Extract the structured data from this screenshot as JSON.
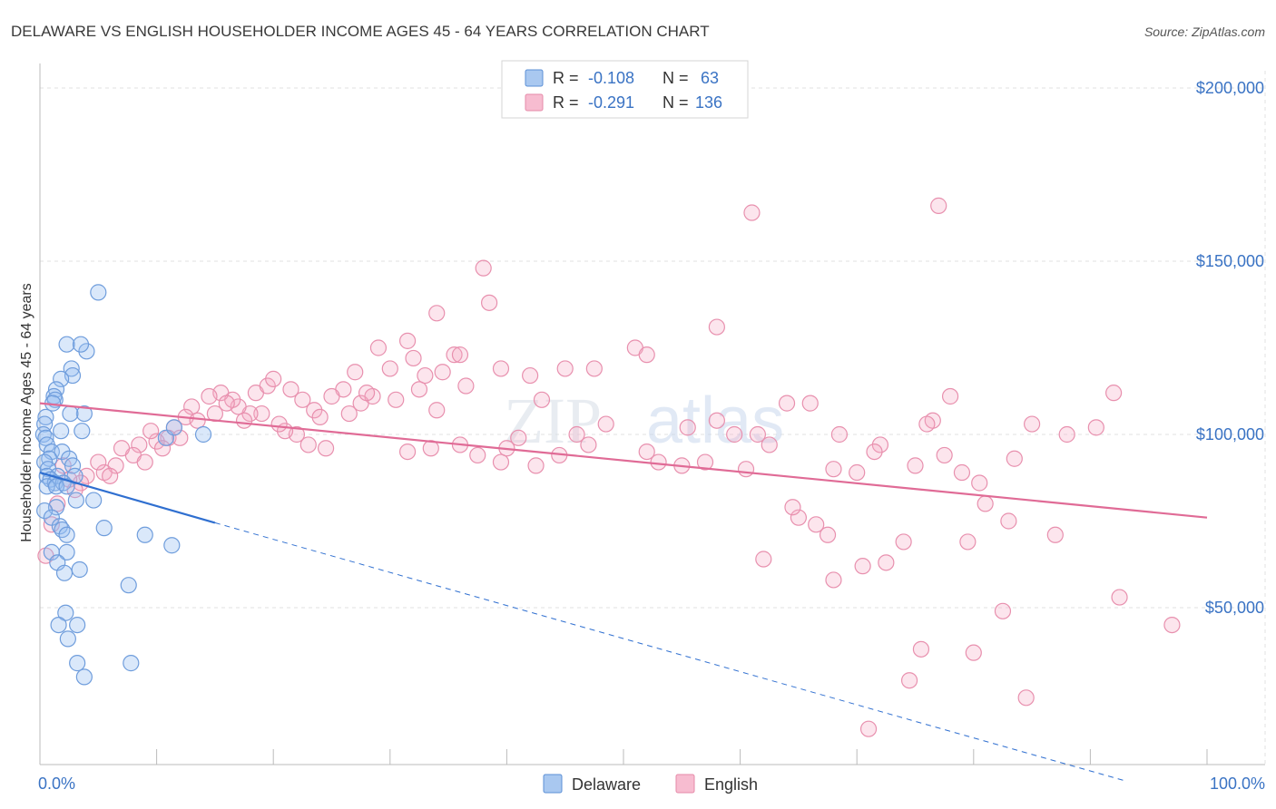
{
  "header": {
    "title": "DELAWARE VS ENGLISH HOUSEHOLDER INCOME AGES 45 - 64 YEARS CORRELATION CHART",
    "source": "Source: ZipAtlas.com"
  },
  "watermark": {
    "zip": "ZIP",
    "atlas": "atlas"
  },
  "legend": {
    "rows": [
      {
        "r_label": "R =",
        "r_value": "-0.108",
        "n_label": "N =",
        "n_value": "63",
        "color": "#a9c8f0",
        "stroke": "#5b8fd6"
      },
      {
        "r_label": "R =",
        "r_value": "-0.291",
        "n_label": "N =",
        "n_value": "136",
        "color": "#f7bcd0",
        "stroke": "#e68aa8"
      }
    ]
  },
  "bottom_legend": {
    "delaware": "Delaware",
    "english": "English"
  },
  "colors": {
    "delaware_fill": "rgba(150,190,240,0.35)",
    "delaware_stroke": "#6f9ddc",
    "delaware_line": "#2f6fd0",
    "english_fill": "rgba(245,170,195,0.30)",
    "english_stroke": "#e890ae",
    "english_line": "#e06b96",
    "grid": "#e2e2e2",
    "axis_text": "#3a73c4"
  },
  "chart_data": {
    "type": "scatter",
    "title": "DELAWARE VS ENGLISH HOUSEHOLDER INCOME AGES 45 - 64 YEARS CORRELATION CHART",
    "xlabel": "",
    "ylabel": "Householder Income Ages 45 - 64 years",
    "xlim": [
      0,
      100
    ],
    "ylim": [
      0,
      210000
    ],
    "x_tick_labels": [
      {
        "value": 0,
        "label": "0.0%"
      },
      {
        "value": 100,
        "label": "100.0%"
      }
    ],
    "y_ticks": [
      {
        "value": 50000,
        "label": "$50,000"
      },
      {
        "value": 100000,
        "label": "$100,000"
      },
      {
        "value": 150000,
        "label": "$150,000"
      },
      {
        "value": 200000,
        "label": "$200,000"
      }
    ],
    "x_minor_ticks": [
      0,
      10,
      20,
      30,
      40,
      50,
      60,
      70,
      80,
      90,
      100
    ],
    "series": [
      {
        "name": "Delaware",
        "r": -0.108,
        "n": 63,
        "trend": {
          "x1": 0,
          "y1": 89000,
          "x2": 15,
          "y2": 74500,
          "dash_to_x": 93,
          "dash_to_y": 0
        },
        "points": [
          [
            5.0,
            141000
          ],
          [
            4.0,
            124000
          ],
          [
            2.3,
            126000
          ],
          [
            3.5,
            126000
          ],
          [
            2.7,
            119000
          ],
          [
            2.8,
            117000
          ],
          [
            1.8,
            116000
          ],
          [
            1.4,
            113000
          ],
          [
            1.2,
            111000
          ],
          [
            1.3,
            110000
          ],
          [
            1.1,
            109000
          ],
          [
            3.8,
            106000
          ],
          [
            2.6,
            106000
          ],
          [
            0.5,
            105000
          ],
          [
            0.4,
            103000
          ],
          [
            1.8,
            101000
          ],
          [
            3.6,
            101000
          ],
          [
            0.3,
            100000
          ],
          [
            0.5,
            99000
          ],
          [
            0.6,
            97000
          ],
          [
            1.0,
            95000
          ],
          [
            1.9,
            95000
          ],
          [
            0.8,
            93000
          ],
          [
            2.5,
            93000
          ],
          [
            0.4,
            92000
          ],
          [
            2.8,
            91000
          ],
          [
            0.7,
            90000
          ],
          [
            0.6,
            88000
          ],
          [
            1.5,
            88000
          ],
          [
            3.0,
            88000
          ],
          [
            0.9,
            87000
          ],
          [
            1.3,
            86000
          ],
          [
            2.0,
            86000
          ],
          [
            0.6,
            85000
          ],
          [
            1.4,
            85000
          ],
          [
            2.3,
            85000
          ],
          [
            3.1,
            81000
          ],
          [
            4.6,
            81000
          ],
          [
            1.4,
            79000
          ],
          [
            0.4,
            78000
          ],
          [
            1.0,
            76000
          ],
          [
            5.5,
            73000
          ],
          [
            1.7,
            73500
          ],
          [
            1.9,
            72500
          ],
          [
            2.3,
            71000
          ],
          [
            9.0,
            71000
          ],
          [
            11.3,
            68000
          ],
          [
            1.0,
            66000
          ],
          [
            2.3,
            66000
          ],
          [
            1.5,
            63000
          ],
          [
            2.1,
            60000
          ],
          [
            3.4,
            61000
          ],
          [
            7.6,
            56500
          ],
          [
            2.2,
            48500
          ],
          [
            1.6,
            45000
          ],
          [
            3.2,
            45000
          ],
          [
            2.4,
            41000
          ],
          [
            3.2,
            34000
          ],
          [
            7.8,
            34000
          ],
          [
            3.8,
            30000
          ],
          [
            14.0,
            100000
          ],
          [
            10.8,
            99000
          ],
          [
            11.5,
            102000
          ]
        ]
      },
      {
        "name": "English",
        "r": -0.291,
        "n": 136,
        "trend": {
          "x1": 0,
          "y1": 109000,
          "x2": 100,
          "y2": 76000
        },
        "points": [
          [
            61.0,
            164000
          ],
          [
            77.0,
            166000
          ],
          [
            38.0,
            148000
          ],
          [
            38.5,
            138000
          ],
          [
            34.0,
            135000
          ],
          [
            58.0,
            131000
          ],
          [
            31.5,
            127000
          ],
          [
            51.0,
            125000
          ],
          [
            35.5,
            123000
          ],
          [
            36.0,
            123000
          ],
          [
            52.0,
            123000
          ],
          [
            29.0,
            125000
          ],
          [
            32.0,
            122000
          ],
          [
            30.0,
            119000
          ],
          [
            27.0,
            118000
          ],
          [
            39.5,
            119000
          ],
          [
            45.0,
            119000
          ],
          [
            47.5,
            119000
          ],
          [
            34.5,
            118000
          ],
          [
            33.0,
            117000
          ],
          [
            42.0,
            117000
          ],
          [
            36.5,
            114000
          ],
          [
            26.0,
            113000
          ],
          [
            25.0,
            111000
          ],
          [
            28.5,
            111000
          ],
          [
            43.0,
            110000
          ],
          [
            64.0,
            109000
          ],
          [
            66.0,
            109000
          ],
          [
            78.0,
            111000
          ],
          [
            76.5,
            104000
          ],
          [
            76.0,
            103000
          ],
          [
            48.5,
            103000
          ],
          [
            55.5,
            102000
          ],
          [
            46.0,
            100000
          ],
          [
            47.0,
            97000
          ],
          [
            58.0,
            104000
          ],
          [
            61.5,
            100000
          ],
          [
            59.5,
            100000
          ],
          [
            62.5,
            97000
          ],
          [
            68.5,
            100000
          ],
          [
            72.0,
            97000
          ],
          [
            77.5,
            94000
          ],
          [
            75.0,
            91000
          ],
          [
            68.0,
            90000
          ],
          [
            70.0,
            89000
          ],
          [
            79.0,
            89000
          ],
          [
            55.0,
            91000
          ],
          [
            57.0,
            92000
          ],
          [
            60.5,
            90000
          ],
          [
            53.0,
            92000
          ],
          [
            52.0,
            95000
          ],
          [
            41.0,
            99000
          ],
          [
            40.0,
            96000
          ],
          [
            44.5,
            94000
          ],
          [
            42.5,
            91000
          ],
          [
            39.5,
            92000
          ],
          [
            37.5,
            94000
          ],
          [
            36.0,
            97000
          ],
          [
            33.5,
            96000
          ],
          [
            31.5,
            95000
          ],
          [
            24.5,
            96000
          ],
          [
            23.0,
            97000
          ],
          [
            22.0,
            100000
          ],
          [
            21.0,
            101000
          ],
          [
            20.5,
            103000
          ],
          [
            19.0,
            106000
          ],
          [
            18.0,
            106000
          ],
          [
            17.5,
            104000
          ],
          [
            17.0,
            108000
          ],
          [
            16.5,
            110000
          ],
          [
            15.5,
            112000
          ],
          [
            14.5,
            111000
          ],
          [
            13.0,
            108000
          ],
          [
            12.5,
            105000
          ],
          [
            11.5,
            102000
          ],
          [
            11.0,
            99000
          ],
          [
            10.0,
            98000
          ],
          [
            9.5,
            101000
          ],
          [
            8.5,
            97000
          ],
          [
            8.0,
            94000
          ],
          [
            7.0,
            96000
          ],
          [
            6.5,
            91000
          ],
          [
            5.5,
            89000
          ],
          [
            5.0,
            92000
          ],
          [
            4.0,
            88000
          ],
          [
            3.5,
            86000
          ],
          [
            3.0,
            84000
          ],
          [
            2.5,
            87000
          ],
          [
            2.0,
            91000
          ],
          [
            1.5,
            80000
          ],
          [
            1.0,
            74000
          ],
          [
            0.5,
            65000
          ],
          [
            6.0,
            88000
          ],
          [
            9.0,
            92000
          ],
          [
            10.5,
            96000
          ],
          [
            12.0,
            99000
          ],
          [
            13.5,
            104000
          ],
          [
            15.0,
            106000
          ],
          [
            16.0,
            109000
          ],
          [
            18.5,
            112000
          ],
          [
            19.5,
            114000
          ],
          [
            20.0,
            116000
          ],
          [
            21.5,
            113000
          ],
          [
            22.5,
            110000
          ],
          [
            23.5,
            107000
          ],
          [
            24.0,
            105000
          ],
          [
            26.5,
            106000
          ],
          [
            27.5,
            109000
          ],
          [
            28.0,
            112000
          ],
          [
            30.5,
            110000
          ],
          [
            32.5,
            113000
          ],
          [
            34.0,
            107000
          ],
          [
            85.0,
            103000
          ],
          [
            88.0,
            100000
          ],
          [
            90.5,
            102000
          ],
          [
            92.0,
            112000
          ],
          [
            83.5,
            93000
          ],
          [
            71.5,
            95000
          ],
          [
            80.5,
            86000
          ],
          [
            81.0,
            80000
          ],
          [
            65.0,
            76000
          ],
          [
            66.5,
            74000
          ],
          [
            64.5,
            79000
          ],
          [
            67.5,
            71000
          ],
          [
            74.0,
            69000
          ],
          [
            79.5,
            69000
          ],
          [
            83.0,
            75000
          ],
          [
            87.0,
            71000
          ],
          [
            62.0,
            64000
          ],
          [
            70.5,
            62000
          ],
          [
            72.5,
            63000
          ],
          [
            68.0,
            58000
          ],
          [
            82.5,
            49000
          ],
          [
            92.5,
            53000
          ],
          [
            97.0,
            45000
          ],
          [
            75.5,
            38000
          ],
          [
            80.0,
            37000
          ],
          [
            74.5,
            29000
          ],
          [
            84.5,
            24000
          ],
          [
            71.0,
            15000
          ]
        ]
      }
    ]
  }
}
